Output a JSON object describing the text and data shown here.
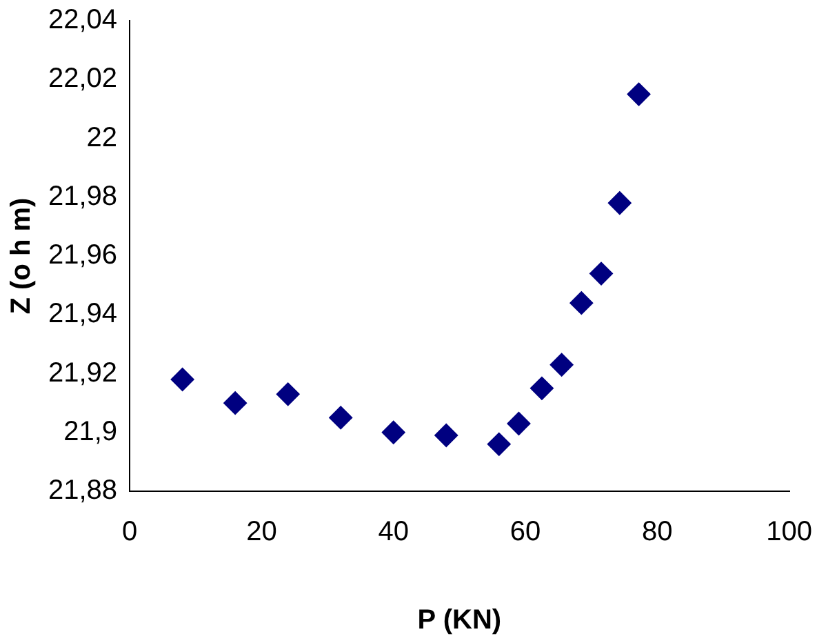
{
  "chart_data": {
    "type": "scatter",
    "xlabel": "P (KN)",
    "ylabel": "Z (o h m)",
    "x": [
      8,
      16,
      24,
      32,
      40,
      48,
      56,
      59,
      62.5,
      65.5,
      68.5,
      71.5,
      74.3,
      77.2
    ],
    "series": [
      {
        "color": "#000080",
        "values": [
          21.918,
          21.91,
          21.913,
          21.905,
          21.9,
          21.899,
          21.896,
          21.903,
          21.915,
          21.923,
          21.944,
          21.954,
          21.978,
          22.015
        ]
      }
    ],
    "xlim": [
      0,
      100
    ],
    "xticks": [
      0,
      20,
      40,
      60,
      80,
      100
    ],
    "ylim": [
      21.88,
      22.04
    ],
    "yticks": [
      {
        "value": 21.88,
        "label": "21,88"
      },
      {
        "value": 21.9,
        "label": "21,9"
      },
      {
        "value": 21.92,
        "label": "21,92"
      },
      {
        "value": 21.94,
        "label": "21,94"
      },
      {
        "value": 21.96,
        "label": "21,96"
      },
      {
        "value": 21.98,
        "label": "21,98"
      },
      {
        "value": 22,
        "label": "22"
      },
      {
        "value": 22.02,
        "label": "22,02"
      },
      {
        "value": 22.04,
        "label": "22,04"
      }
    ],
    "grid": false,
    "legend": false,
    "marker": "diamond"
  }
}
